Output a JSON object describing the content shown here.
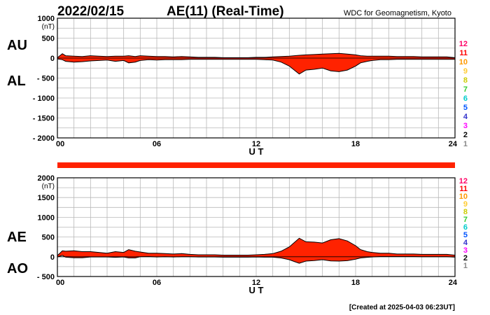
{
  "header": {
    "date": "2022/02/15",
    "title": "AE(11) (Real-Time)",
    "source": "WDC for Geomagnetism, Kyoto"
  },
  "footer": {
    "created": "[Created at 2025-04-03 06:23UT]"
  },
  "colors": {
    "fill": "#ff2200",
    "grid": "#b8b8b8",
    "bar": "#ff2200",
    "scale_colors": [
      "#cccccc",
      "#888888",
      "#000000",
      "#ff00ff",
      "#3333cc",
      "#0055ff",
      "#00cccc",
      "#33cc33",
      "#cccc00",
      "#ffcc33",
      "#ff9900",
      "#ff0000",
      "#ff0066"
    ]
  },
  "scale_labels": [
    "1",
    "2",
    "3",
    "4",
    "5",
    "6",
    "7",
    "8",
    "9",
    "10",
    "11",
    "12"
  ],
  "chart_data": [
    {
      "type": "area",
      "panel": "AU/AL",
      "labels": {
        "upper": "AU",
        "lower": "AL"
      },
      "unit_label": "(nT)",
      "xlabel": "U T",
      "ylim": [
        -2000,
        1000
      ],
      "yticks": [
        1000,
        500,
        0,
        -500,
        -1000,
        -1500,
        -2000
      ],
      "ytick_labels": [
        "1000",
        "500",
        "0",
        "- 500",
        "- 1000",
        "- 1500",
        "- 2000"
      ],
      "xlim": [
        0,
        24
      ],
      "xticks": [
        0,
        6,
        12,
        18,
        24
      ],
      "xtick_labels": [
        "00",
        "06",
        "12",
        "18",
        "24"
      ],
      "x": [
        0,
        0.3,
        0.5,
        1,
        1.5,
        2,
        2.5,
        3,
        3.5,
        4,
        4.3,
        4.7,
        5,
        5.5,
        6,
        6.5,
        7,
        7.5,
        8,
        8.5,
        9,
        9.5,
        10,
        10.5,
        11,
        11.5,
        12,
        12.5,
        13,
        13.5,
        14,
        14.3,
        14.6,
        15,
        15.5,
        16,
        16.5,
        17,
        17.5,
        18,
        18.3,
        18.7,
        19,
        19.5,
        20,
        20.5,
        21,
        21.5,
        22,
        22.5,
        23,
        23.5,
        24
      ],
      "series": [
        {
          "name": "AU",
          "values": [
            10,
            110,
            60,
            50,
            40,
            60,
            50,
            40,
            50,
            50,
            60,
            40,
            60,
            50,
            40,
            40,
            30,
            40,
            30,
            20,
            20,
            20,
            10,
            10,
            10,
            10,
            20,
            20,
            30,
            40,
            50,
            60,
            70,
            80,
            90,
            100,
            110,
            120,
            100,
            80,
            60,
            50,
            50,
            50,
            50,
            40,
            40,
            40,
            30,
            30,
            30,
            30,
            10
          ]
        },
        {
          "name": "AL",
          "values": [
            -20,
            -40,
            -80,
            -100,
            -90,
            -70,
            -60,
            -50,
            -80,
            -60,
            -120,
            -100,
            -60,
            -40,
            -50,
            -40,
            -40,
            -40,
            -30,
            -30,
            -30,
            -30,
            -30,
            -30,
            -30,
            -30,
            -30,
            -40,
            -50,
            -100,
            -200,
            -300,
            -400,
            -300,
            -280,
            -250,
            -320,
            -340,
            -300,
            -200,
            -120,
            -80,
            -60,
            -40,
            -40,
            -30,
            -30,
            -30,
            -30,
            -30,
            -30,
            -30,
            -30
          ]
        }
      ]
    },
    {
      "type": "area",
      "panel": "AE/AO",
      "labels": {
        "upper": "AE",
        "lower": "AO"
      },
      "unit_label": "(nT)",
      "xlabel": "U T",
      "ylim": [
        -500,
        2000
      ],
      "yticks": [
        2000,
        1500,
        1000,
        500,
        0,
        -500
      ],
      "ytick_labels": [
        "2000",
        "1500",
        "1000",
        "500",
        "0",
        "- 500"
      ],
      "xlim": [
        0,
        24
      ],
      "xticks": [
        0,
        6,
        12,
        18,
        24
      ],
      "xtick_labels": [
        "00",
        "06",
        "12",
        "18",
        "24"
      ],
      "x": [
        0,
        0.3,
        0.5,
        1,
        1.5,
        2,
        2.5,
        3,
        3.5,
        4,
        4.3,
        4.7,
        5,
        5.5,
        6,
        6.5,
        7,
        7.5,
        8,
        8.5,
        9,
        9.5,
        10,
        10.5,
        11,
        11.5,
        12,
        12.5,
        13,
        13.5,
        14,
        14.3,
        14.6,
        15,
        15.5,
        16,
        16.5,
        17,
        17.5,
        18,
        18.3,
        18.7,
        19,
        19.5,
        20,
        20.5,
        21,
        21.5,
        22,
        22.5,
        23,
        23.5,
        24
      ],
      "series": [
        {
          "name": "AE",
          "values": [
            30,
            150,
            140,
            150,
            130,
            130,
            110,
            90,
            130,
            110,
            180,
            140,
            120,
            90,
            90,
            80,
            70,
            80,
            60,
            50,
            50,
            50,
            40,
            40,
            40,
            40,
            50,
            60,
            80,
            140,
            250,
            360,
            470,
            380,
            370,
            350,
            430,
            460,
            400,
            280,
            180,
            130,
            110,
            90,
            90,
            70,
            70,
            70,
            60,
            60,
            60,
            60,
            40
          ]
        },
        {
          "name": "AO",
          "values": [
            -5,
            35,
            -10,
            -25,
            -25,
            -5,
            -5,
            -5,
            -15,
            -5,
            -30,
            -30,
            0,
            5,
            -5,
            0,
            -5,
            0,
            0,
            -5,
            -5,
            -5,
            -10,
            -10,
            -10,
            -10,
            -5,
            -10,
            -10,
            -30,
            -75,
            -120,
            -165,
            -110,
            -95,
            -75,
            -105,
            -110,
            -100,
            -60,
            -30,
            -15,
            -5,
            5,
            5,
            5,
            5,
            5,
            0,
            0,
            0,
            0,
            -10
          ]
        }
      ]
    }
  ]
}
